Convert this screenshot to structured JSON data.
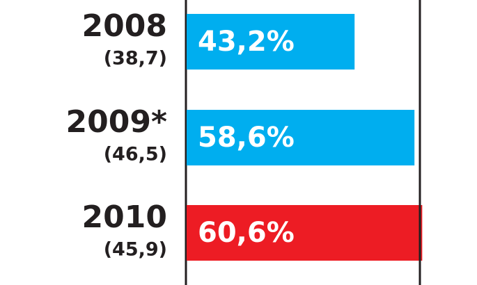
{
  "chart_data": {
    "type": "hbar",
    "categories": [
      "2008",
      "2009*",
      "2010"
    ],
    "category_notes": [
      "(38,7)",
      "(46,5)",
      "(45,9)"
    ],
    "values": [
      43.2,
      58.6,
      60.6
    ],
    "value_labels": [
      "43,2%",
      "58,6%",
      "60,6%"
    ],
    "colors": [
      "#00aeef",
      "#00aeef",
      "#ed1c24"
    ],
    "xlim": [
      0,
      60
    ]
  }
}
